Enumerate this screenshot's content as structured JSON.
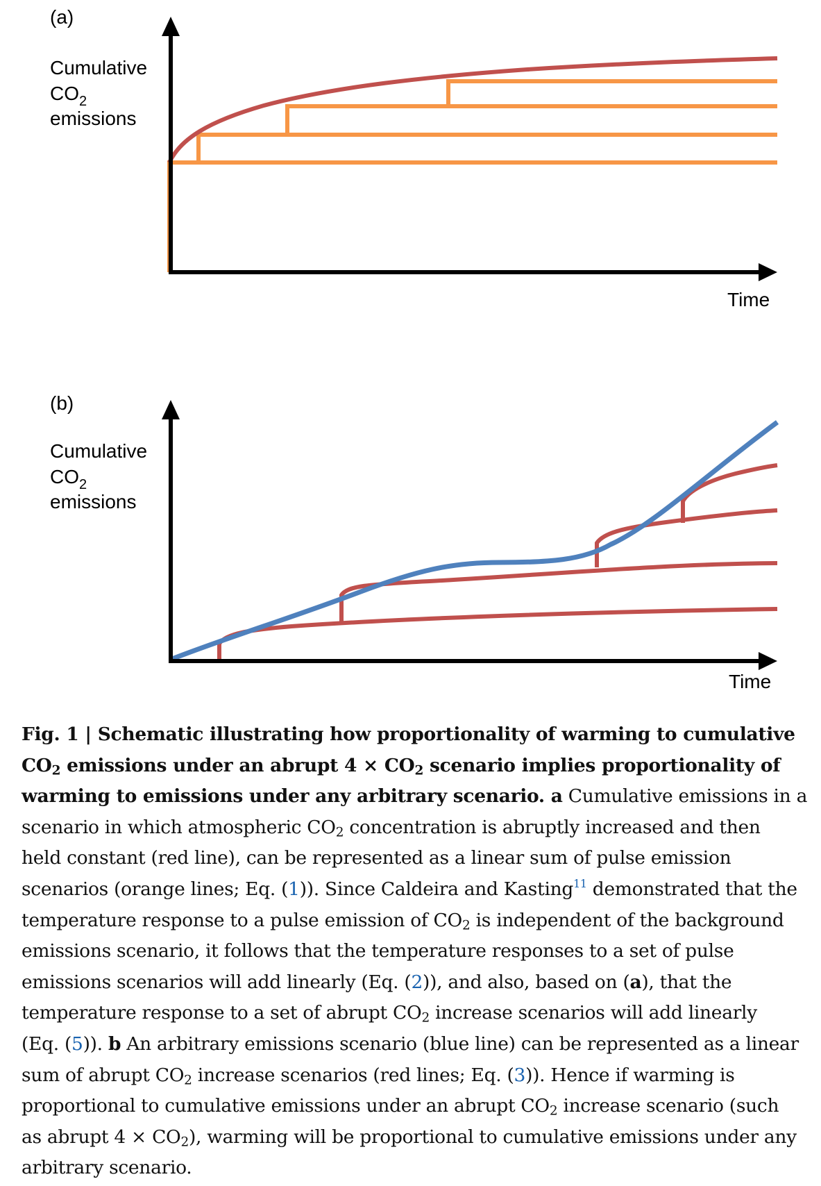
{
  "panel_a": {
    "label": "(a)",
    "ylabel_line1": "Cumulative",
    "ylabel_co": "CO",
    "ylabel_sub": "2",
    "ylabel_line3": "emissions",
    "xlabel": "Time",
    "colors": {
      "abrupt_line": "#c0504d",
      "pulse_lines": "#f79646",
      "axes": "#000000"
    }
  },
  "panel_b": {
    "label": "(b)",
    "ylabel_line1": "Cumulative",
    "ylabel_co": "CO",
    "ylabel_sub": "2",
    "ylabel_line3": "emissions",
    "xlabel": "Time",
    "colors": {
      "arbitrary_line": "#4f81bd",
      "abrupt_lines": "#c0504d",
      "axes": "#000000"
    }
  },
  "caption": {
    "fig_label": "Fig. 1 | ",
    "title_1": "Schematic illustrating how proportionality of warming to cumulative",
    "title_2a": "CO",
    "title_2b": " emissions under an abrupt 4 × CO",
    "title_2c": " scenario implies proportionality of",
    "title_3": "warming to emissions under any arbitrary scenario. a",
    "t3_rest": " Cumulative emissions in a",
    "t4a": "scenario in which atmospheric CO",
    "t4b": " concentration is abruptly increased and then",
    "t5": "held constant (red line), can be represented as a linear sum of pulse emission",
    "t6a": "scenarios (orange lines; Eq. (",
    "t6ref1": "1",
    "t6b": ")). Since Caldeira and Kasting",
    "t6sup": "11",
    "t6c": " demonstrated that the",
    "t7a": "temperature response to a pulse emission of CO",
    "t7b": " is independent of the background",
    "t8": "emissions scenario, it follows that the temperature responses to a set of pulse",
    "t9a": "emissions scenarios will add linearly (Eq. (",
    "t9ref": "2",
    "t9b": ")), and also, based on (",
    "t9bold": "a",
    "t9c": "), that the",
    "t10a": "temperature response to a set of abrupt CO",
    "t10b": " increase scenarios will add linearly",
    "t11a": "(Eq. (",
    "t11ref": "5",
    "t11b": ")). ",
    "t11bold": "b",
    "t11c": " An arbitrary emissions scenario (blue line) can be represented as a linear",
    "t12a": "sum of abrupt CO",
    "t12b": " increase scenarios (red lines; Eq. (",
    "t12ref": "3",
    "t12c": ")). Hence if warming is",
    "t13a": "proportional to cumulative emissions under an abrupt CO",
    "t13b": " increase scenario (such",
    "t14a": "as abrupt 4 × CO",
    "t14b": "), warming will be proportional to cumulative emissions under any",
    "t15": "arbitrary scenario.",
    "sub2": "2"
  }
}
